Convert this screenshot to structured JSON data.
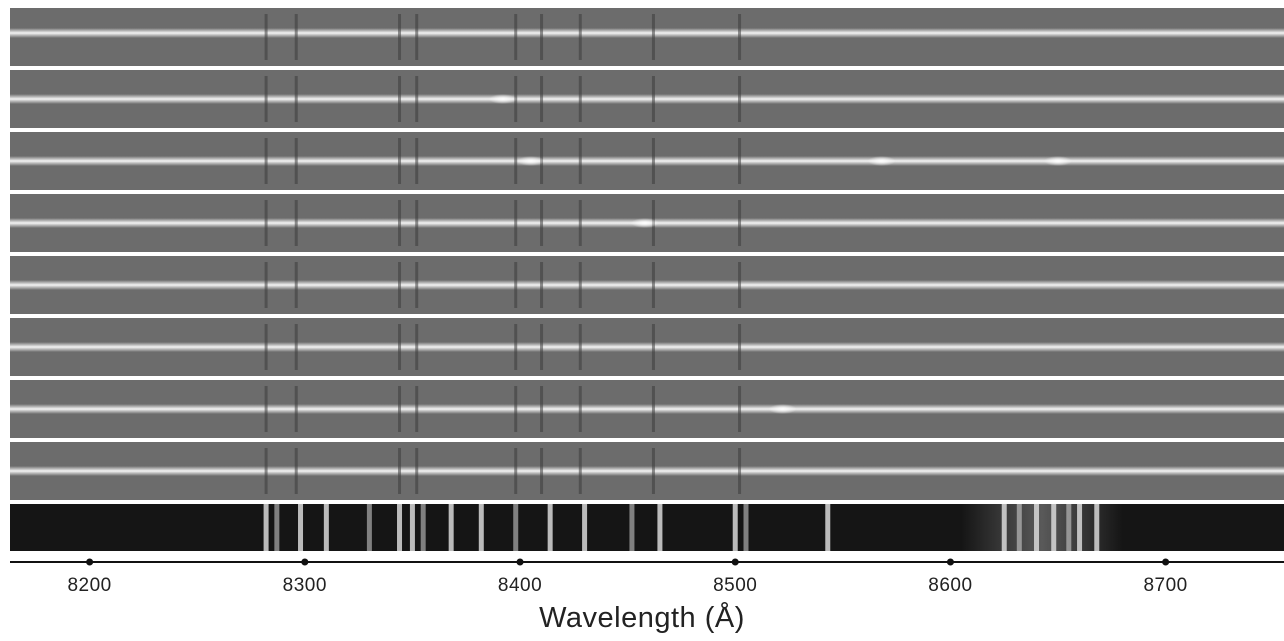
{
  "figure": {
    "type": "image-strips",
    "strip_count": 8,
    "colors": {
      "strip_background": "#6c6c6c",
      "trace": "#f4f4f4",
      "sky_panel": "#151515",
      "sky_line": "#d8d8d8",
      "separator": "#ffffff",
      "axis": "#111111"
    },
    "cosmic_rays": [
      {
        "strip": 1,
        "wavelength": 8392
      },
      {
        "strip": 2,
        "wavelength": 8405
      },
      {
        "strip": 2,
        "wavelength": 8568
      },
      {
        "strip": 2,
        "wavelength": 8650
      },
      {
        "strip": 3,
        "wavelength": 8458
      },
      {
        "strip": 6,
        "wavelength": 8522
      }
    ],
    "absorption_features": [
      8282,
      8296,
      8344,
      8352,
      8398,
      8410,
      8428,
      8462,
      8502
    ],
    "sky_lines": [
      8282,
      8287,
      8298,
      8310,
      8330,
      8344,
      8350,
      8355,
      8368,
      8382,
      8398,
      8414,
      8430,
      8452,
      8465,
      8500,
      8505,
      8543,
      8625,
      8632,
      8640,
      8648,
      8655,
      8660,
      8668
    ],
    "axis": {
      "xlim": [
        8163,
        8755
      ],
      "ticks": [
        {
          "value": 8200,
          "label": "8200"
        },
        {
          "value": 8300,
          "label": "8300"
        },
        {
          "value": 8400,
          "label": "8400"
        },
        {
          "value": 8500,
          "label": "8500"
        },
        {
          "value": 8600,
          "label": "8600"
        },
        {
          "value": 8700,
          "label": "8700"
        }
      ],
      "xlabel": "Wavelength (Å)"
    }
  }
}
